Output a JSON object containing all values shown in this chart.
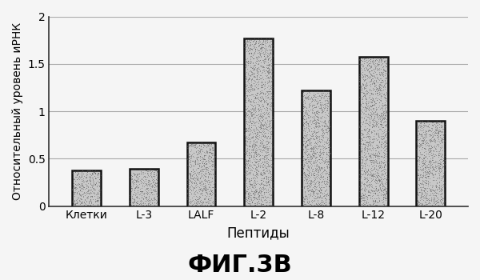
{
  "categories": [
    "Клетки",
    "L-3",
    "LALF",
    "L-2",
    "L-8",
    "L-12",
    "L-20"
  ],
  "values": [
    0.38,
    0.39,
    0.67,
    1.77,
    1.22,
    1.57,
    0.9
  ],
  "bar_facecolor": "#c8c8c8",
  "bar_edgecolor": "#111111",
  "background_color": "#f5f5f5",
  "title": "ФИГ.3В",
  "xlabel": "Пептиды",
  "ylabel": "Относительный уровень иРНК",
  "ylim": [
    0,
    2.0
  ],
  "yticks": [
    0,
    0.5,
    1.0,
    1.5,
    2.0
  ],
  "ytick_labels": [
    "0",
    "0.5",
    "1",
    "1.5",
    "2"
  ],
  "bar_width": 0.5,
  "title_fontsize": 22,
  "xlabel_fontsize": 12,
  "ylabel_fontsize": 10,
  "tick_fontsize": 10,
  "title_fontweight": "bold",
  "grid_color": "#aaaaaa",
  "grid_linewidth": 0.8,
  "spine_color": "#333333"
}
